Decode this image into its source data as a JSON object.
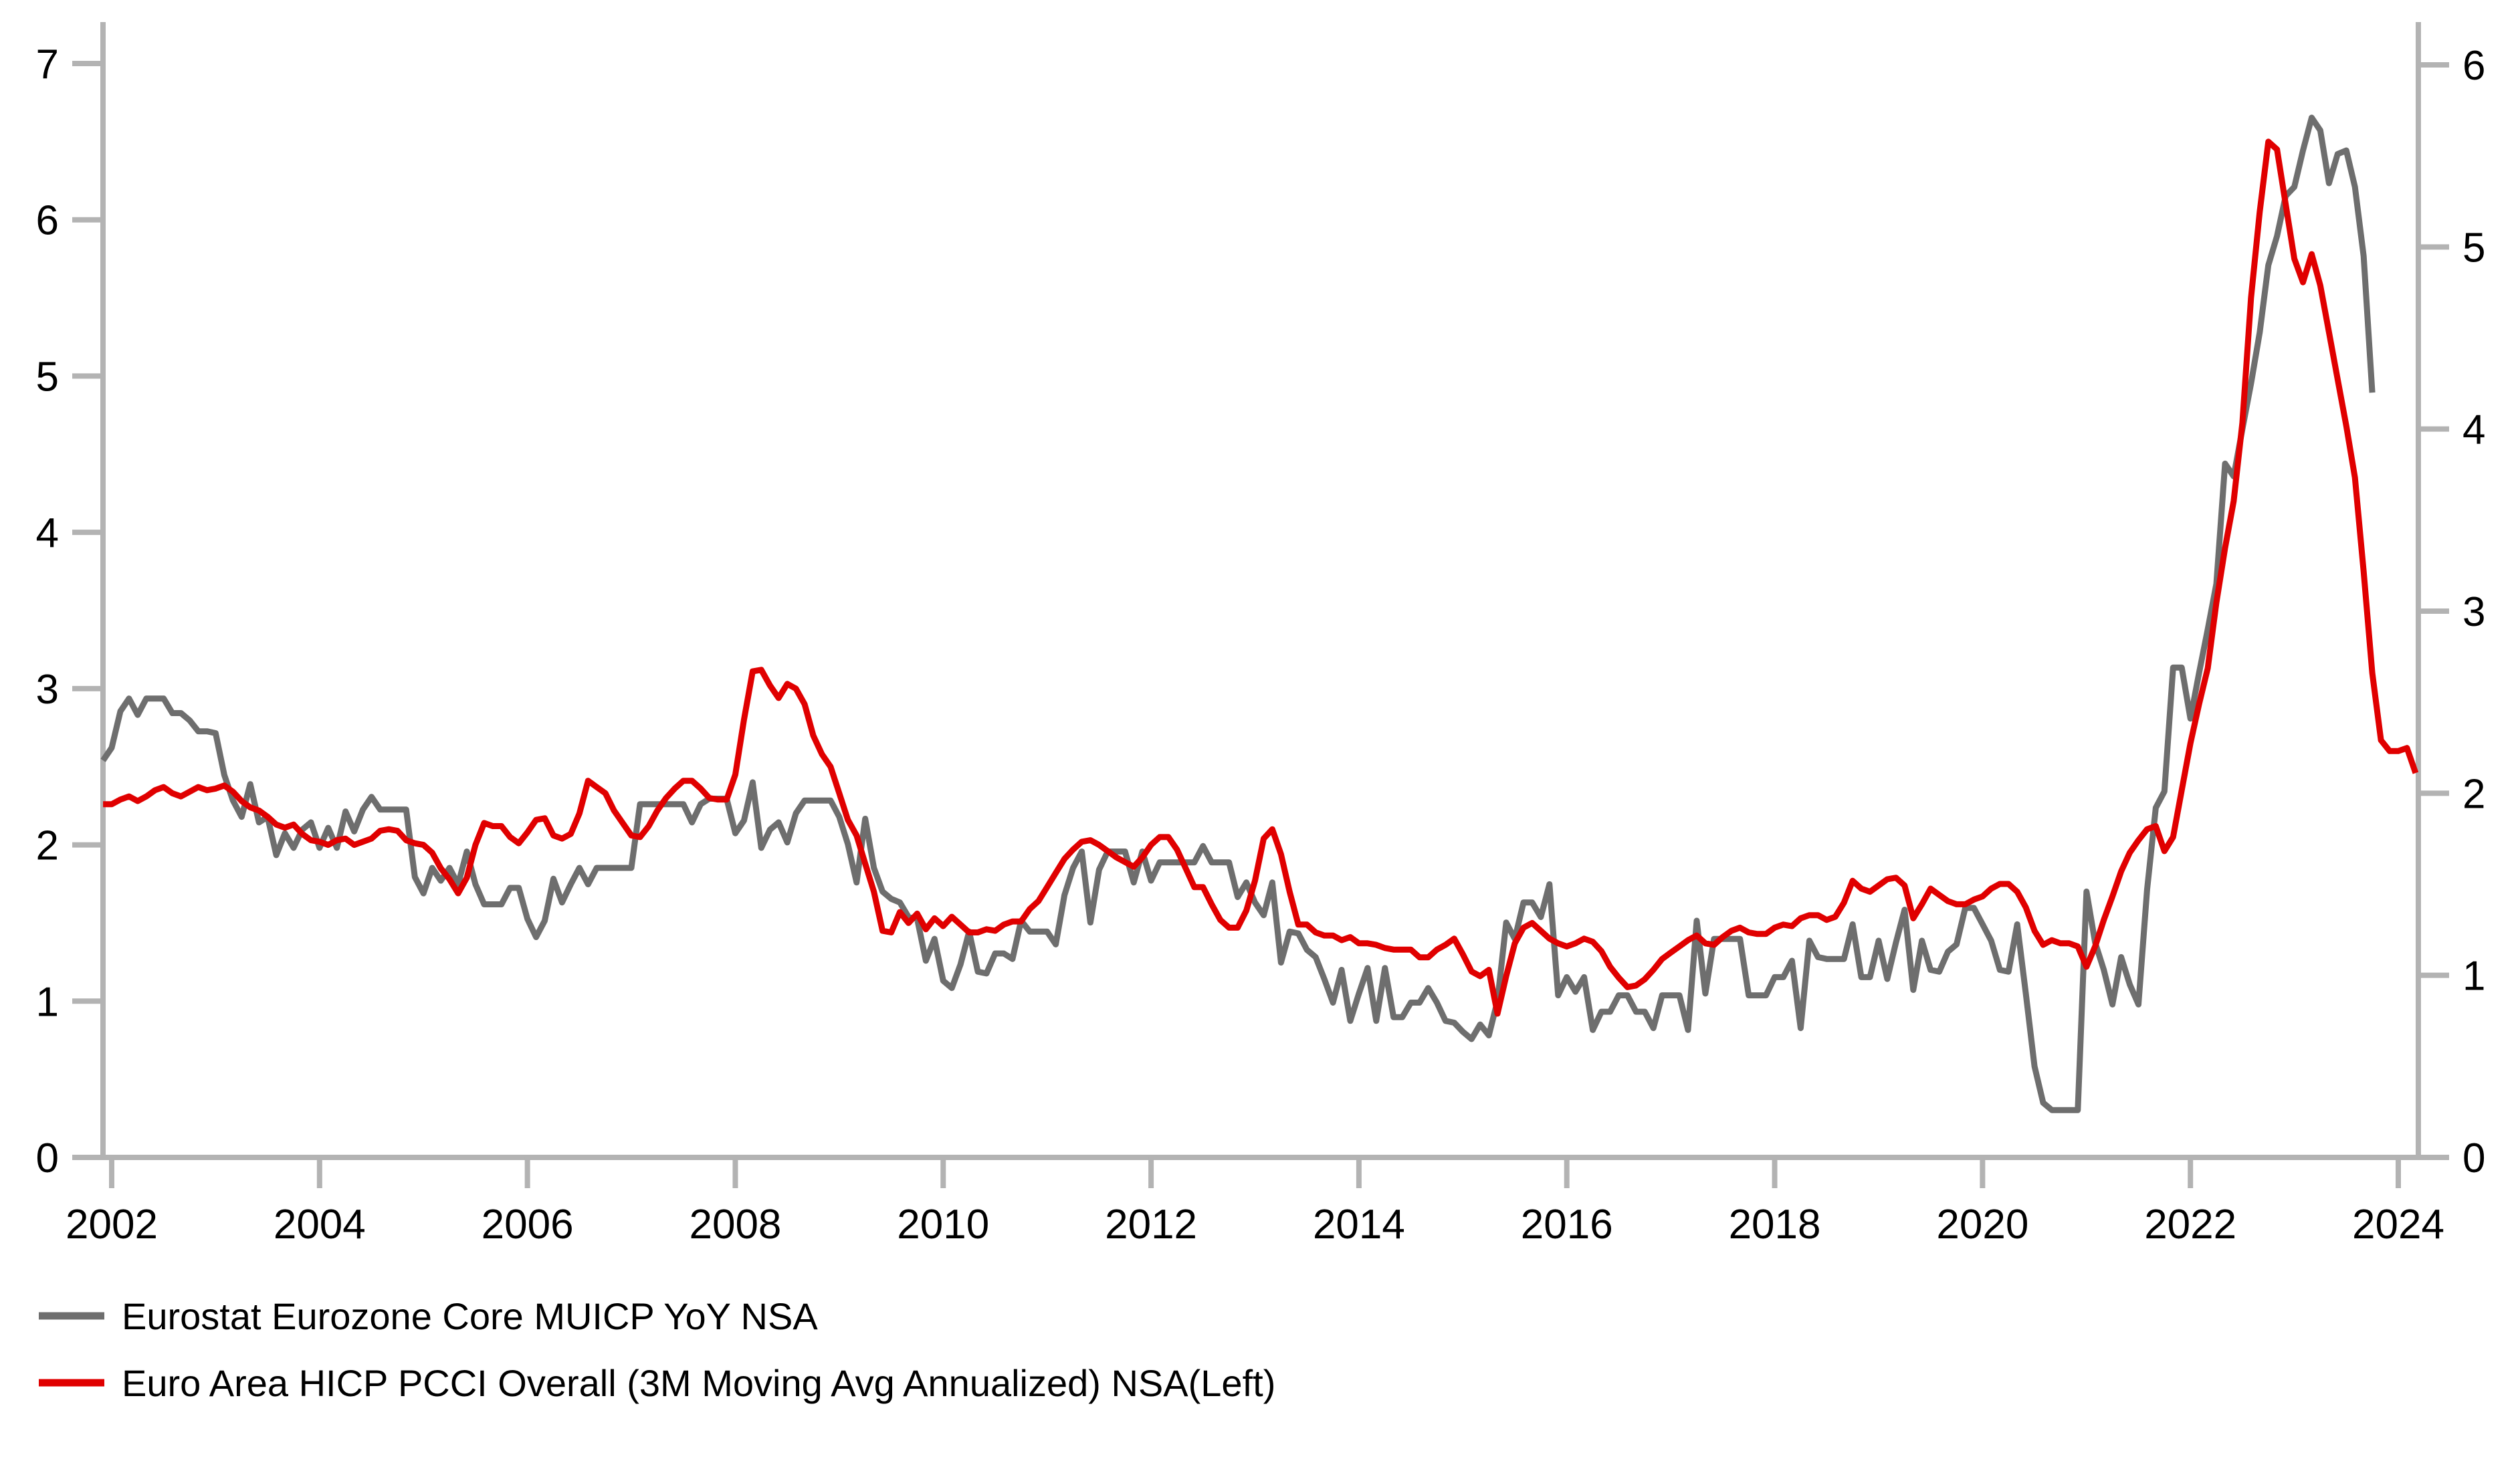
{
  "chart_data": {
    "type": "line",
    "title": "",
    "x_axis": {
      "label": "",
      "ticks": [
        2002,
        2004,
        2006,
        2008,
        2010,
        2012,
        2014,
        2016,
        2018,
        2020,
        2022,
        2024
      ],
      "range": [
        2001.92,
        2024.19
      ]
    },
    "left_axis": {
      "label": "",
      "ticks": [
        0,
        1,
        2,
        3,
        4,
        5,
        6,
        7
      ],
      "range": [
        0,
        7
      ]
    },
    "right_axis": {
      "label": "",
      "ticks": [
        0,
        1,
        2,
        3,
        4,
        5,
        6
      ],
      "range": [
        0,
        6
      ]
    },
    "grid": false,
    "legend_position": "bottom-left",
    "series": [
      {
        "name": "Eurostat Eurozone Core MUICP YoY NSA",
        "axis": "right",
        "color": "#6e6e6e",
        "x_start": 2001.9167,
        "x_step_years": 0.0833333,
        "values": [
          2.18,
          2.25,
          2.45,
          2.52,
          2.43,
          2.52,
          2.52,
          2.52,
          2.44,
          2.44,
          2.4,
          2.34,
          2.34,
          2.33,
          2.1,
          1.96,
          1.87,
          2.05,
          1.84,
          1.87,
          1.66,
          1.78,
          1.7,
          1.8,
          1.84,
          1.7,
          1.81,
          1.7,
          1.9,
          1.79,
          1.91,
          1.98,
          1.91,
          1.91,
          1.91,
          1.91,
          1.54,
          1.45,
          1.59,
          1.52,
          1.59,
          1.5,
          1.68,
          1.5,
          1.39,
          1.39,
          1.39,
          1.48,
          1.48,
          1.31,
          1.21,
          1.3,
          1.53,
          1.4,
          1.5,
          1.59,
          1.5,
          1.59,
          1.59,
          1.59,
          1.59,
          1.59,
          1.94,
          1.94,
          1.94,
          1.94,
          1.94,
          1.94,
          1.84,
          1.94,
          1.97,
          1.97,
          1.97,
          1.78,
          1.85,
          2.06,
          1.7,
          1.8,
          1.84,
          1.73,
          1.89,
          1.96,
          1.96,
          1.96,
          1.96,
          1.87,
          1.72,
          1.51,
          1.86,
          1.59,
          1.46,
          1.42,
          1.4,
          1.32,
          1.31,
          1.08,
          1.2,
          0.97,
          0.93,
          1.06,
          1.24,
          1.02,
          1.01,
          1.12,
          1.12,
          1.09,
          1.3,
          1.24,
          1.24,
          1.24,
          1.17,
          1.44,
          1.59,
          1.68,
          1.29,
          1.58,
          1.68,
          1.68,
          1.68,
          1.51,
          1.68,
          1.52,
          1.62,
          1.62,
          1.62,
          1.62,
          1.62,
          1.71,
          1.62,
          1.62,
          1.62,
          1.43,
          1.51,
          1.4,
          1.33,
          1.51,
          1.07,
          1.24,
          1.23,
          1.14,
          1.1,
          0.98,
          0.85,
          1.03,
          0.75,
          0.9,
          1.04,
          0.75,
          1.04,
          0.77,
          0.77,
          0.85,
          0.85,
          0.93,
          0.85,
          0.75,
          0.74,
          0.69,
          0.65,
          0.73,
          0.67,
          0.86,
          1.29,
          1.2,
          1.4,
          1.4,
          1.32,
          1.5,
          0.89,
          0.99,
          0.91,
          0.99,
          0.7,
          0.8,
          0.8,
          0.89,
          0.89,
          0.8,
          0.8,
          0.71,
          0.89,
          0.89,
          0.89,
          0.7,
          1.3,
          0.9,
          1.2,
          1.2,
          1.2,
          1.2,
          0.89,
          0.89,
          0.89,
          0.99,
          0.99,
          1.08,
          0.71,
          1.19,
          1.1,
          1.09,
          1.09,
          1.09,
          1.28,
          0.99,
          0.99,
          1.19,
          0.98,
          1.18,
          1.36,
          0.92,
          1.19,
          1.03,
          1.02,
          1.13,
          1.17,
          1.37,
          1.37,
          1.28,
          1.19,
          1.03,
          1.02,
          1.28,
          0.9,
          0.5,
          0.3,
          0.26,
          0.26,
          0.26,
          0.26,
          1.46,
          1.18,
          1.03,
          0.84,
          1.1,
          0.95,
          0.84,
          1.47,
          1.92,
          2.01,
          2.69,
          2.69,
          2.41,
          2.66,
          2.9,
          3.15,
          3.81,
          3.74,
          4.0,
          4.25,
          4.53,
          4.9,
          5.06,
          5.28,
          5.33,
          5.53,
          5.71,
          5.64,
          5.35,
          5.51,
          5.53,
          5.33,
          4.95,
          4.2
        ]
      },
      {
        "name": "Euro Area HICP PCCI Overall (3M Moving Avg Annualized) NSA(Left)",
        "axis": "left",
        "color": "#e00000",
        "x_start": 2001.9167,
        "x_step_years": 0.0833333,
        "values": [
          2.26,
          2.26,
          2.29,
          2.31,
          2.28,
          2.31,
          2.35,
          2.37,
          2.33,
          2.31,
          2.34,
          2.37,
          2.35,
          2.36,
          2.38,
          2.34,
          2.28,
          2.24,
          2.22,
          2.18,
          2.13,
          2.11,
          2.13,
          2.07,
          2.03,
          2.02,
          2.0,
          2.03,
          2.04,
          2.0,
          2.02,
          2.04,
          2.09,
          2.1,
          2.09,
          2.03,
          2.01,
          2.0,
          1.95,
          1.85,
          1.78,
          1.69,
          1.79,
          2.0,
          2.14,
          2.12,
          2.12,
          2.05,
          2.01,
          2.08,
          2.16,
          2.17,
          2.06,
          2.04,
          2.07,
          2.2,
          2.41,
          2.37,
          2.33,
          2.22,
          2.14,
          2.06,
          2.05,
          2.12,
          2.22,
          2.3,
          2.36,
          2.41,
          2.41,
          2.36,
          2.3,
          2.29,
          2.29,
          2.45,
          2.8,
          3.11,
          3.12,
          3.02,
          2.94,
          3.03,
          3.0,
          2.9,
          2.7,
          2.58,
          2.5,
          2.33,
          2.16,
          2.06,
          1.88,
          1.7,
          1.45,
          1.44,
          1.57,
          1.5,
          1.56,
          1.46,
          1.53,
          1.48,
          1.54,
          1.49,
          1.44,
          1.44,
          1.46,
          1.45,
          1.49,
          1.51,
          1.51,
          1.59,
          1.64,
          1.73,
          1.82,
          1.91,
          1.97,
          2.02,
          2.03,
          2.0,
          1.96,
          1.92,
          1.89,
          1.86,
          1.92,
          2.0,
          2.05,
          2.05,
          1.97,
          1.85,
          1.73,
          1.73,
          1.62,
          1.52,
          1.47,
          1.47,
          1.58,
          1.77,
          2.04,
          2.1,
          1.94,
          1.7,
          1.49,
          1.49,
          1.44,
          1.42,
          1.42,
          1.39,
          1.41,
          1.37,
          1.37,
          1.36,
          1.34,
          1.33,
          1.33,
          1.33,
          1.28,
          1.28,
          1.33,
          1.36,
          1.4,
          1.3,
          1.19,
          1.16,
          1.2,
          0.92,
          1.16,
          1.37,
          1.47,
          1.5,
          1.45,
          1.4,
          1.37,
          1.35,
          1.37,
          1.4,
          1.38,
          1.32,
          1.22,
          1.15,
          1.09,
          1.1,
          1.14,
          1.2,
          1.27,
          1.31,
          1.35,
          1.39,
          1.42,
          1.37,
          1.36,
          1.41,
          1.45,
          1.47,
          1.44,
          1.43,
          1.43,
          1.47,
          1.49,
          1.48,
          1.53,
          1.55,
          1.55,
          1.52,
          1.54,
          1.63,
          1.77,
          1.72,
          1.7,
          1.74,
          1.78,
          1.79,
          1.74,
          1.53,
          1.62,
          1.72,
          1.68,
          1.64,
          1.62,
          1.62,
          1.65,
          1.67,
          1.72,
          1.75,
          1.75,
          1.7,
          1.6,
          1.45,
          1.36,
          1.39,
          1.37,
          1.37,
          1.35,
          1.22,
          1.35,
          1.52,
          1.67,
          1.83,
          1.95,
          2.03,
          2.1,
          2.12,
          1.96,
          2.05,
          2.35,
          2.65,
          2.9,
          3.13,
          3.55,
          3.9,
          4.2,
          4.7,
          5.5,
          6.05,
          6.5,
          6.45,
          6.1,
          5.75,
          5.6,
          5.78,
          5.58,
          5.28,
          4.98,
          4.68,
          4.35,
          3.75,
          3.1,
          2.67,
          2.6,
          2.6,
          2.62,
          2.46
        ]
      }
    ]
  },
  "legend": {
    "items": [
      {
        "label": "Eurostat Eurozone Core MUICP YoY NSA"
      },
      {
        "label": "Euro Area HICP PCCI Overall (3M Moving Avg Annualized) NSA(Left)"
      }
    ]
  },
  "colors": {
    "axis": "#b3b3b3",
    "text": "#000000",
    "background": "#ffffff"
  }
}
